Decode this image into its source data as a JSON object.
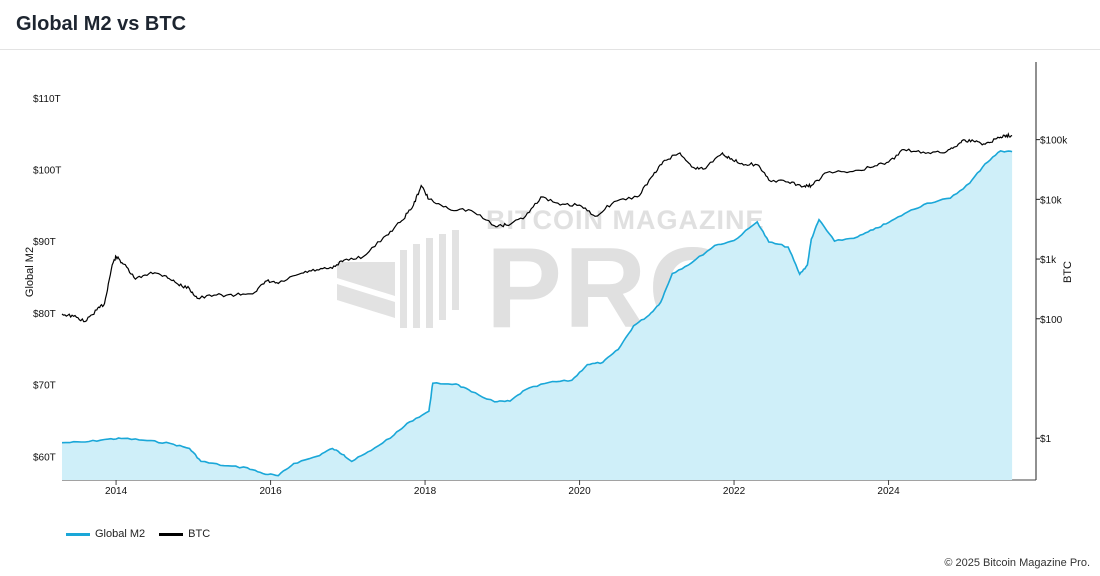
{
  "header": {
    "title": "Global M2 vs BTC"
  },
  "footer": {
    "copyright": "© 2025 Bitcoin Magazine Pro."
  },
  "watermark": {
    "top_text": "BITCOIN MAGAZINE",
    "main_text": "PRO"
  },
  "colors": {
    "m2_line": "#1aa7d8",
    "m2_fill": "#cfeff9",
    "btc_line": "#000000",
    "watermark": "#e2e2e2"
  },
  "chart_data": {
    "type": "line",
    "title": "Global M2 vs BTC",
    "x_range": [
      2013.3,
      2025.65
    ],
    "x_ticks": [
      2014,
      2016,
      2018,
      2020,
      2022,
      2024
    ],
    "y_left": {
      "label": "Global M2",
      "range": [
        56.7,
        115
      ],
      "ticks": [
        60,
        70,
        80,
        90,
        100,
        110
      ],
      "tick_labels": [
        "$60T",
        "$70T",
        "$80T",
        "$90T",
        "$100T",
        "$110T"
      ]
    },
    "y_right": {
      "label": "BTC",
      "scale": "log",
      "range_log10": [
        -0.7,
        6.3
      ],
      "ticks_log10": [
        0,
        2,
        3,
        4,
        5
      ],
      "tick_labels": [
        "$1",
        "$100",
        "$1k",
        "$10k",
        "$100k"
      ]
    },
    "legend": "bottom-left",
    "series": [
      {
        "name": "Global M2",
        "type": "area",
        "axis": "left",
        "points": [
          [
            2013.3,
            61.9
          ],
          [
            2013.6,
            62.0
          ],
          [
            2013.9,
            62.4
          ],
          [
            2014.1,
            62.5
          ],
          [
            2014.4,
            62.2
          ],
          [
            2014.7,
            61.8
          ],
          [
            2014.95,
            61.1
          ],
          [
            2015.1,
            59.3
          ],
          [
            2015.4,
            58.7
          ],
          [
            2015.7,
            58.4
          ],
          [
            2015.9,
            57.6
          ],
          [
            2016.1,
            57.3
          ],
          [
            2016.3,
            59.0
          ],
          [
            2016.6,
            60.0
          ],
          [
            2016.8,
            61.1
          ],
          [
            2016.95,
            60.2
          ],
          [
            2017.05,
            59.3
          ],
          [
            2017.3,
            60.8
          ],
          [
            2017.6,
            63.0
          ],
          [
            2017.8,
            64.8
          ],
          [
            2018.05,
            66.3
          ],
          [
            2018.1,
            70.2
          ],
          [
            2018.4,
            70.1
          ],
          [
            2018.6,
            69.0
          ],
          [
            2018.9,
            67.6
          ],
          [
            2019.1,
            67.7
          ],
          [
            2019.3,
            69.3
          ],
          [
            2019.6,
            70.3
          ],
          [
            2019.9,
            70.6
          ],
          [
            2020.1,
            72.8
          ],
          [
            2020.3,
            73.1
          ],
          [
            2020.5,
            74.9
          ],
          [
            2020.7,
            78.2
          ],
          [
            2020.9,
            79.7
          ],
          [
            2021.05,
            81.5
          ],
          [
            2021.2,
            85.5
          ],
          [
            2021.45,
            87.0
          ],
          [
            2021.75,
            89.4
          ],
          [
            2022.0,
            90.1
          ],
          [
            2022.3,
            92.7
          ],
          [
            2022.45,
            89.9
          ],
          [
            2022.7,
            89.2
          ],
          [
            2022.85,
            85.4
          ],
          [
            2022.95,
            86.7
          ],
          [
            2023.0,
            90.3
          ],
          [
            2023.1,
            93.0
          ],
          [
            2023.3,
            90.0
          ],
          [
            2023.6,
            90.6
          ],
          [
            2023.8,
            91.6
          ],
          [
            2024.0,
            92.6
          ],
          [
            2024.25,
            94.1
          ],
          [
            2024.5,
            95.3
          ],
          [
            2024.8,
            96.0
          ],
          [
            2025.05,
            98.1
          ],
          [
            2025.25,
            100.8
          ],
          [
            2025.45,
            102.6
          ],
          [
            2025.6,
            102.5
          ]
        ]
      },
      {
        "name": "BTC",
        "type": "line",
        "axis": "right",
        "scale": "log",
        "points": [
          [
            2013.3,
            120
          ],
          [
            2013.45,
            110
          ],
          [
            2013.6,
            90
          ],
          [
            2013.75,
            140
          ],
          [
            2013.85,
            180
          ],
          [
            2013.95,
            800
          ],
          [
            2014.0,
            1100
          ],
          [
            2014.1,
            820
          ],
          [
            2014.25,
            460
          ],
          [
            2014.45,
            600
          ],
          [
            2014.65,
            520
          ],
          [
            2014.8,
            380
          ],
          [
            2014.95,
            320
          ],
          [
            2015.05,
            220
          ],
          [
            2015.3,
            250
          ],
          [
            2015.55,
            250
          ],
          [
            2015.8,
            280
          ],
          [
            2015.95,
            430
          ],
          [
            2016.1,
            390
          ],
          [
            2016.4,
            580
          ],
          [
            2016.6,
            660
          ],
          [
            2016.8,
            700
          ],
          [
            2016.95,
            960
          ],
          [
            2017.2,
            1100
          ],
          [
            2017.5,
            2500
          ],
          [
            2017.7,
            4400
          ],
          [
            2017.85,
            8000
          ],
          [
            2017.95,
            17000
          ],
          [
            2018.05,
            10000
          ],
          [
            2018.3,
            7000
          ],
          [
            2018.6,
            6500
          ],
          [
            2018.9,
            3600
          ],
          [
            2019.05,
            3700
          ],
          [
            2019.3,
            5200
          ],
          [
            2019.5,
            11000
          ],
          [
            2019.75,
            8000
          ],
          [
            2020.0,
            8000
          ],
          [
            2020.2,
            5200
          ],
          [
            2020.45,
            9200
          ],
          [
            2020.75,
            11000
          ],
          [
            2020.95,
            25000
          ],
          [
            2021.1,
            45000
          ],
          [
            2021.3,
            60000
          ],
          [
            2021.45,
            35000
          ],
          [
            2021.6,
            32000
          ],
          [
            2021.85,
            60000
          ],
          [
            2021.95,
            47000
          ],
          [
            2022.1,
            40000
          ],
          [
            2022.3,
            38000
          ],
          [
            2022.45,
            21000
          ],
          [
            2022.7,
            19500
          ],
          [
            2022.9,
            16500
          ],
          [
            2023.0,
            17000
          ],
          [
            2023.2,
            28000
          ],
          [
            2023.5,
            29000
          ],
          [
            2023.8,
            35000
          ],
          [
            2024.0,
            42000
          ],
          [
            2024.2,
            68000
          ],
          [
            2024.45,
            62000
          ],
          [
            2024.7,
            60000
          ],
          [
            2024.85,
            75000
          ],
          [
            2024.95,
            96000
          ],
          [
            2025.1,
            95000
          ],
          [
            2025.25,
            84000
          ],
          [
            2025.4,
            104000
          ],
          [
            2025.5,
            118000
          ],
          [
            2025.6,
            117000
          ]
        ]
      }
    ]
  }
}
